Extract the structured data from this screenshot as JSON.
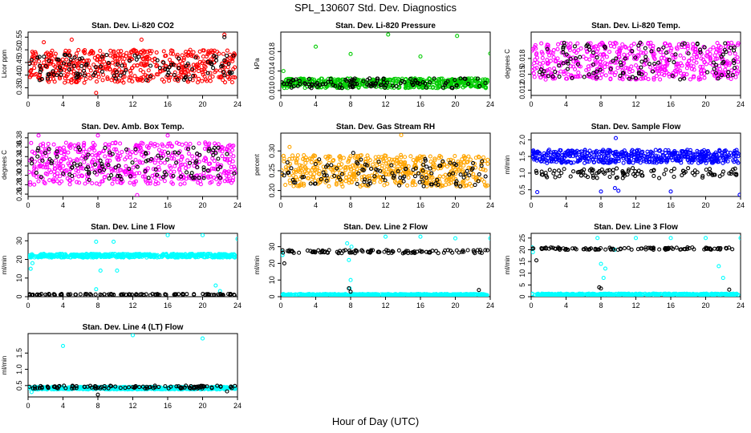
{
  "title": "SPL_130607  Std. Dev. Diagnostics",
  "xlabel": "Hour of Day (UTC)",
  "chart_data": [
    {
      "type": "scatter",
      "title": "Stan. Dev. Li-820 CO2",
      "ylabel": "Licor ppm",
      "xlim": [
        0,
        24
      ],
      "ylim": [
        0.32,
        0.57
      ],
      "x_ticks": [
        0,
        4,
        8,
        12,
        16,
        20,
        24
      ],
      "y_ticks": [
        0.35,
        0.4,
        0.45,
        0.5,
        0.55
      ],
      "y_tick_labels": [
        "0.35",
        "0.40",
        "0.45",
        "0.50",
        "0.55"
      ],
      "series": [
        {
          "color": "#ff0000",
          "band": [
            0.37,
            0.5
          ],
          "outliers": [
            [
              7.8,
              0.33
            ],
            [
              5.0,
              0.54
            ],
            [
              13.0,
              0.54
            ],
            [
              22.5,
              0.56
            ],
            [
              1.8,
              0.53
            ]
          ]
        },
        {
          "color": "#000000",
          "band": [
            0.38,
            0.48
          ],
          "outliers": [
            [
              22.5,
              0.55
            ]
          ]
        }
      ]
    },
    {
      "type": "scatter",
      "title": "Stan. Dev. Li-820 Pressure",
      "ylabel": "kPa",
      "xlim": [
        0,
        24
      ],
      "ylim": [
        0.009,
        0.022
      ],
      "x_ticks": [
        0,
        4,
        8,
        12,
        16,
        20,
        24
      ],
      "y_ticks": [
        0.01,
        0.014,
        0.018
      ],
      "y_tick_labels": [
        "0.010",
        "0.014",
        "0.018"
      ],
      "series": [
        {
          "color": "#00cc00",
          "band": [
            0.0105,
            0.0125
          ],
          "outliers": [
            [
              4.0,
              0.019
            ],
            [
              8.0,
              0.0175
            ],
            [
              12.3,
              0.0215
            ],
            [
              16.0,
              0.017
            ],
            [
              20.2,
              0.0212
            ],
            [
              24.0,
              0.0176
            ],
            [
              0.3,
              0.014
            ]
          ]
        },
        {
          "color": "#000000",
          "band": [
            0.0105,
            0.0125
          ],
          "outliers": []
        }
      ]
    },
    {
      "type": "scatter",
      "title": "Stan. Dev. Li-820 Temp.",
      "ylabel": "degrees C",
      "xlim": [
        0,
        24
      ],
      "ylim": [
        0.011,
        0.023
      ],
      "x_ticks": [
        0,
        4,
        8,
        12,
        16,
        20,
        24
      ],
      "y_ticks": [
        0.012,
        0.015,
        0.018
      ],
      "y_tick_labels": [
        "0.012",
        "0.015",
        "0.018"
      ],
      "series": [
        {
          "color": "#ff00ff",
          "band": [
            0.014,
            0.021
          ],
          "outliers": []
        },
        {
          "color": "#000000",
          "band": [
            0.014,
            0.021
          ],
          "outliers": []
        }
      ]
    },
    {
      "type": "scatter",
      "title": "Stan. Dev. Amb. Box Temp.",
      "ylabel": "degrees C",
      "xlim": [
        0,
        24
      ],
      "ylim": [
        0.255,
        0.39
      ],
      "x_ticks": [
        0,
        4,
        8,
        12,
        16,
        20,
        24
      ],
      "y_ticks": [
        0.26,
        0.28,
        0.3,
        0.32,
        0.34,
        0.36,
        0.38
      ],
      "y_tick_labels": [
        "0.26",
        "0.28",
        "0.30",
        "0.32",
        "0.34",
        "0.36",
        "0.38"
      ],
      "series": [
        {
          "color": "#ff00ff",
          "band": [
            0.28,
            0.37
          ],
          "outliers": [
            [
              12.5,
              0.258
            ],
            [
              1.2,
              0.385
            ],
            [
              16.0,
              0.385
            ],
            [
              8.0,
              0.385
            ]
          ]
        },
        {
          "color": "#000000",
          "band": [
            0.29,
            0.36
          ],
          "outliers": []
        }
      ]
    },
    {
      "type": "scatter",
      "title": "Stan. Dev. Gas Stream RH",
      "ylabel": "percent",
      "xlim": [
        0,
        24
      ],
      "ylim": [
        0.185,
        0.345
      ],
      "x_ticks": [
        0,
        4,
        8,
        12,
        16,
        20,
        24
      ],
      "y_ticks": [
        0.2,
        0.25,
        0.3
      ],
      "y_tick_labels": [
        "0.20",
        "0.25",
        "0.30"
      ],
      "series": [
        {
          "color": "#ffa500",
          "band": [
            0.21,
            0.29
          ],
          "outliers": [
            [
              13.8,
              0.34
            ],
            [
              1.0,
              0.31
            ]
          ]
        },
        {
          "color": "#000000",
          "band": [
            0.21,
            0.28
          ],
          "outliers": [
            [
              8.3,
              0.295
            ]
          ]
        }
      ]
    },
    {
      "type": "scatter",
      "title": "Stan. Dev. Sample Flow",
      "ylabel": "ml/min",
      "xlim": [
        0,
        24
      ],
      "ylim": [
        0.3,
        2.2
      ],
      "x_ticks": [
        0,
        4,
        8,
        12,
        16,
        20,
        24
      ],
      "y_ticks": [
        0.5,
        1.0,
        1.5,
        2.0
      ],
      "y_tick_labels": [
        "0.5",
        "1.0",
        "1.5",
        "2.0"
      ],
      "series": [
        {
          "color": "#0000ff",
          "band": [
            1.3,
            1.7
          ],
          "outliers": [
            [
              0.7,
              0.43
            ],
            [
              8.0,
              0.45
            ],
            [
              9.6,
              0.55
            ],
            [
              10.0,
              0.47
            ],
            [
              16.0,
              0.45
            ],
            [
              23.9,
              0.35
            ],
            [
              9.7,
              2.05
            ]
          ]
        },
        {
          "color": "#000000",
          "band": [
            0.85,
            1.15
          ],
          "outliers": []
        }
      ]
    },
    {
      "type": "scatter",
      "title": "Stan. Dev. Line 1 Flow",
      "ylabel": "ml/min",
      "xlim": [
        0,
        24
      ],
      "ylim": [
        0,
        34
      ],
      "x_ticks": [
        0,
        4,
        8,
        12,
        16,
        20,
        24
      ],
      "y_ticks": [
        0,
        10,
        20,
        30
      ],
      "y_tick_labels": [
        "0",
        "10",
        "20",
        "30"
      ],
      "series": [
        {
          "color": "#00ffff",
          "band": [
            21.0,
            23.0
          ],
          "outliers": [
            [
              0.3,
              15
            ],
            [
              0.5,
              18
            ],
            [
              7.8,
              29.5
            ],
            [
              8.3,
              14
            ],
            [
              9.8,
              29.5
            ],
            [
              10.2,
              14
            ],
            [
              16.0,
              33
            ],
            [
              20.0,
              33
            ],
            [
              21.5,
              6
            ],
            [
              22.0,
              3
            ],
            [
              24.0,
              31
            ],
            [
              7.8,
              4
            ]
          ]
        },
        {
          "color": "#000000",
          "band": [
            0.8,
            1.5
          ],
          "outliers": []
        }
      ]
    },
    {
      "type": "scatter",
      "title": "Stan. Dev. Line 2 Flow",
      "ylabel": "ml/min",
      "xlim": [
        0,
        24
      ],
      "ylim": [
        0,
        38
      ],
      "x_ticks": [
        0,
        4,
        8,
        12,
        16,
        20,
        24
      ],
      "y_ticks": [
        0,
        10,
        20,
        30
      ],
      "y_tick_labels": [
        "0",
        "10",
        "20",
        "30"
      ],
      "series": [
        {
          "color": "#00ffff",
          "band": [
            0.8,
            1.6
          ],
          "outliers": [
            [
              0.1,
              27
            ],
            [
              0.2,
              25
            ],
            [
              7.6,
              32
            ],
            [
              7.8,
              22
            ],
            [
              8.1,
              30
            ],
            [
              8.0,
              10
            ],
            [
              12.0,
              36
            ],
            [
              16.0,
              36
            ],
            [
              20.0,
              35
            ],
            [
              24.0,
              35
            ],
            [
              7.9,
              5
            ]
          ]
        },
        {
          "color": "#000000",
          "band": [
            26.0,
            28.0
          ],
          "outliers": [
            [
              0.4,
              20
            ],
            [
              7.8,
              5
            ],
            [
              8.0,
              3
            ],
            [
              22.7,
              4
            ]
          ]
        }
      ]
    },
    {
      "type": "scatter",
      "title": "Stan. Dev. Line 3 Flow",
      "ylabel": "ml/min",
      "xlim": [
        0,
        24
      ],
      "ylim": [
        0,
        27
      ],
      "x_ticks": [
        0,
        4,
        8,
        12,
        16,
        20,
        24
      ],
      "y_ticks": [
        0,
        5,
        10,
        15,
        20,
        25
      ],
      "y_tick_labels": [
        "0",
        "5",
        "10",
        "15",
        "20",
        "25"
      ],
      "series": [
        {
          "color": "#00ffff",
          "band": [
            0.6,
            1.3
          ],
          "outliers": [
            [
              0.1,
              21
            ],
            [
              0.2,
              19
            ],
            [
              7.6,
              25
            ],
            [
              8.0,
              14
            ],
            [
              8.3,
              8
            ],
            [
              8.5,
              12
            ],
            [
              9.6,
              20
            ],
            [
              12.0,
              25
            ],
            [
              16.0,
              25
            ],
            [
              20.0,
              25
            ],
            [
              21.5,
              13
            ],
            [
              22.0,
              8
            ],
            [
              24.0,
              25
            ]
          ]
        },
        {
          "color": "#000000",
          "band": [
            20.0,
            21.0
          ],
          "outliers": [
            [
              0.6,
              15.5
            ],
            [
              7.8,
              4
            ],
            [
              8.0,
              3.5
            ],
            [
              22.7,
              3
            ]
          ]
        }
      ]
    },
    {
      "type": "scatter",
      "title": "Stan. Dev. Line 4 (LT) Flow",
      "ylabel": "ml/min",
      "xlim": [
        0,
        24
      ],
      "ylim": [
        0.15,
        2.1
      ],
      "x_ticks": [
        0,
        4,
        8,
        12,
        16,
        20,
        24
      ],
      "y_ticks": [
        0.5,
        1.0,
        1.5
      ],
      "y_tick_labels": [
        "0.5",
        "1.0",
        "1.5"
      ],
      "series": [
        {
          "color": "#00ffff",
          "band": [
            0.38,
            0.46
          ],
          "outliers": [
            [
              4.0,
              1.72
            ],
            [
              12.0,
              2.05
            ],
            [
              20.0,
              1.95
            ],
            [
              0.4,
              0.3
            ]
          ]
        },
        {
          "color": "#000000",
          "band": [
            0.41,
            0.5
          ],
          "outliers": [
            [
              8.0,
              0.22
            ],
            [
              22.8,
              0.32
            ]
          ]
        }
      ]
    }
  ]
}
